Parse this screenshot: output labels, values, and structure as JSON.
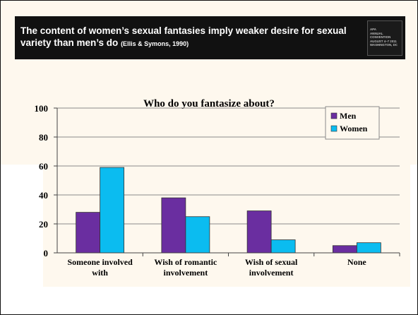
{
  "slide": {
    "title": "The content of women’s sexual fantasies imply weaker desire for sexual variety  than men’s do",
    "citation": "(Ellis & Symons, 1990)",
    "logo_lines": [
      "APA",
      "ANNUAL",
      "CONVENTION",
      "AUGUST 4–7 2011",
      "WASHINGTON, DC"
    ]
  },
  "chart_data": {
    "type": "bar",
    "title": "Who do you fantasize about?",
    "categories": [
      [
        "Someone involved",
        "with"
      ],
      [
        "Wish of romantic",
        "involvement"
      ],
      [
        "Wish of sexual",
        "involvement"
      ],
      [
        "None"
      ]
    ],
    "series": [
      {
        "name": "Men",
        "values": [
          28,
          38,
          29,
          5
        ],
        "color": "#6a2ea0"
      },
      {
        "name": "Women",
        "values": [
          59,
          25,
          9,
          7
        ],
        "color": "#0bbcf0"
      }
    ],
    "ylim": [
      0,
      100
    ],
    "yticks": [
      0,
      20,
      40,
      60,
      80,
      100
    ],
    "xlabel": "",
    "ylabel": "",
    "grid": true,
    "legend": "top-right"
  }
}
